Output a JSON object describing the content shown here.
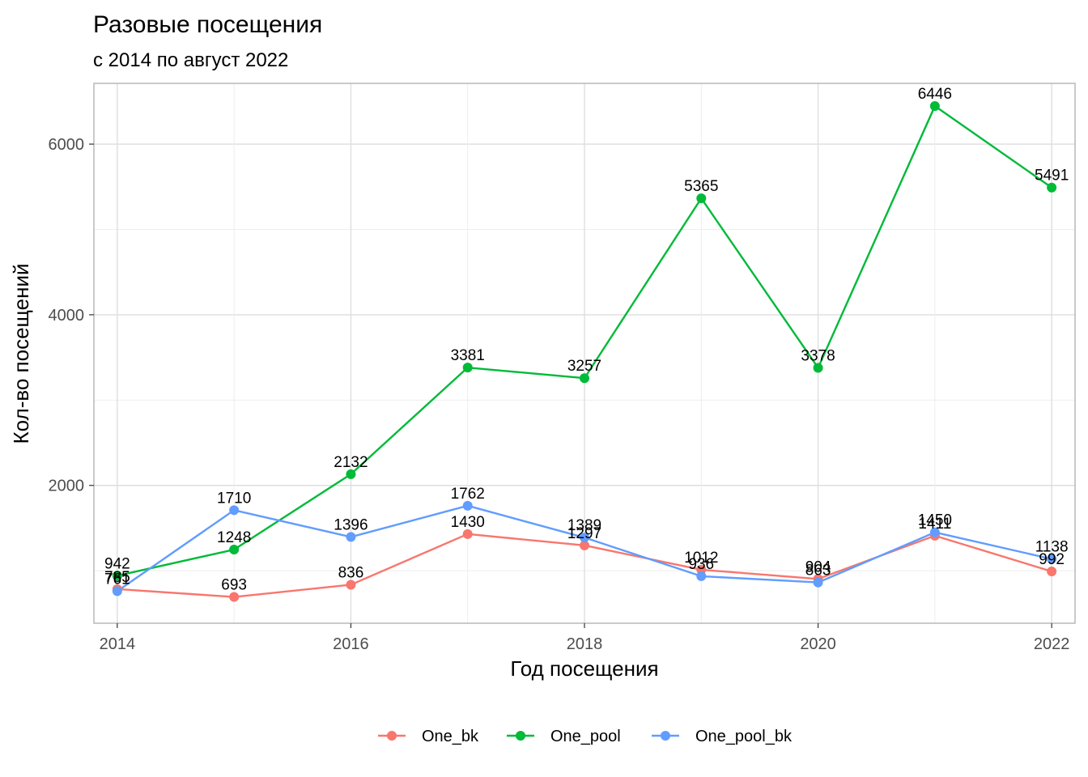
{
  "chart_data": {
    "type": "line",
    "title": "Разовые посещения",
    "subtitle": "с 2014 по август 2022",
    "xlabel": "Год посещения",
    "ylabel": "Кол-во посещений",
    "x": [
      2014,
      2015,
      2016,
      2017,
      2018,
      2019,
      2020,
      2021,
      2022
    ],
    "xticks": [
      "2014",
      "2016",
      "2018",
      "2020",
      "2022"
    ],
    "yticks": [
      "2000",
      "4000",
      "6000"
    ],
    "xlim": [
      2013.8,
      2022.2
    ],
    "ylim": [
      385,
      6712
    ],
    "grid": true,
    "legend_position": "bottom",
    "series": [
      {
        "name": "One_bk",
        "color": "#F8766D",
        "values": [
          785,
          693,
          836,
          1430,
          1297,
          1012,
          904,
          1411,
          992
        ]
      },
      {
        "name": "One_pool",
        "color": "#00BA38",
        "values": [
          942,
          1248,
          2132,
          3381,
          3257,
          5365,
          3378,
          6446,
          5491
        ]
      },
      {
        "name": "One_pool_bk",
        "color": "#619CFF",
        "values": [
          761,
          1710,
          1396,
          1762,
          1389,
          936,
          863,
          1450,
          1138
        ]
      }
    ]
  }
}
